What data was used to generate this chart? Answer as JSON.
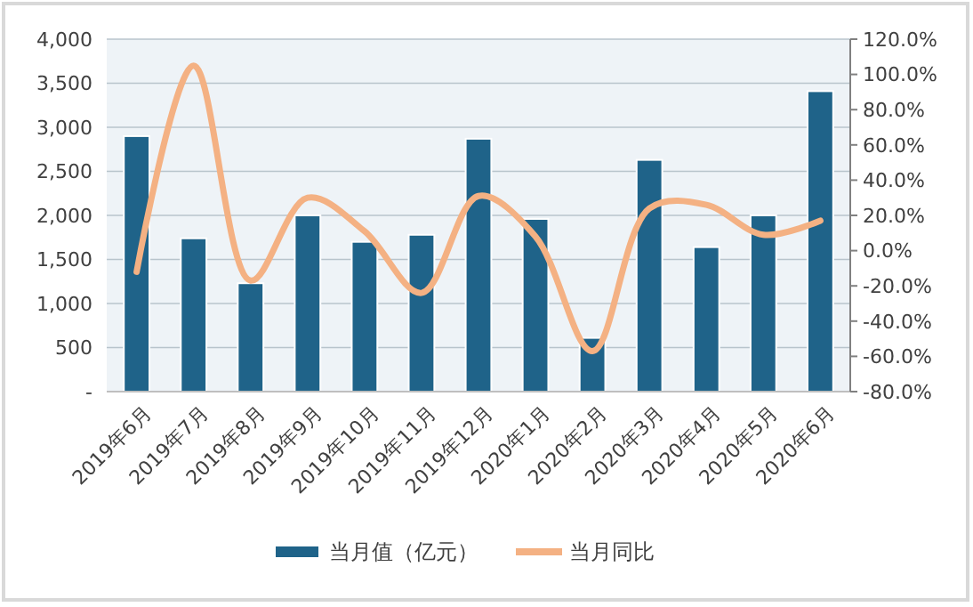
{
  "chart_data": {
    "type": "bar",
    "categories": [
      "2019年6月",
      "2019年7月",
      "2019年8月",
      "2019年9月",
      "2019年10月",
      "2019年11月",
      "2019年12月",
      "2020年1月",
      "2020年2月",
      "2020年3月",
      "2020年4月",
      "2020年5月",
      "2020年6月"
    ],
    "series": [
      {
        "name": "当月值（亿元）",
        "color": "#1f6389",
        "values": [
          2900,
          1740,
          1230,
          2000,
          1700,
          1780,
          2870,
          1960,
          610,
          2630,
          1640,
          2000,
          3410
        ]
      },
      {
        "name": "当月同比",
        "type": "line",
        "axis": "y2",
        "color": "#f4b183",
        "values": [
          -12,
          105,
          -17,
          30,
          11,
          -24,
          31,
          8,
          -57,
          24,
          26,
          9,
          17
        ]
      }
    ],
    "ylim": [
      0,
      4000
    ],
    "yticks": [
      {
        "value": 0,
        "label": "-"
      },
      {
        "value": 500,
        "label": "500"
      },
      {
        "value": 1000,
        "label": "1,000"
      },
      {
        "value": 1500,
        "label": "1,500"
      },
      {
        "value": 2000,
        "label": "2,000"
      },
      {
        "value": 2500,
        "label": "2,500"
      },
      {
        "value": 3000,
        "label": "3,000"
      },
      {
        "value": 3500,
        "label": "3,500"
      },
      {
        "value": 4000,
        "label": "4,000"
      }
    ],
    "y2lim": [
      -80,
      120
    ],
    "y2ticks": [
      {
        "value": -80,
        "label": "-80.0%"
      },
      {
        "value": -60,
        "label": "-60.0%"
      },
      {
        "value": -40,
        "label": "-40.0%"
      },
      {
        "value": -20,
        "label": "-20.0%"
      },
      {
        "value": 0,
        "label": "0.0%"
      },
      {
        "value": 20,
        "label": "20.0%"
      },
      {
        "value": 40,
        "label": "40.0%"
      },
      {
        "value": 60,
        "label": "60.0%"
      },
      {
        "value": 80,
        "label": "80.0%"
      },
      {
        "value": 100,
        "label": "100.0%"
      },
      {
        "value": 120,
        "label": "120.0%"
      }
    ],
    "grid": "y",
    "legend": "bottom"
  }
}
